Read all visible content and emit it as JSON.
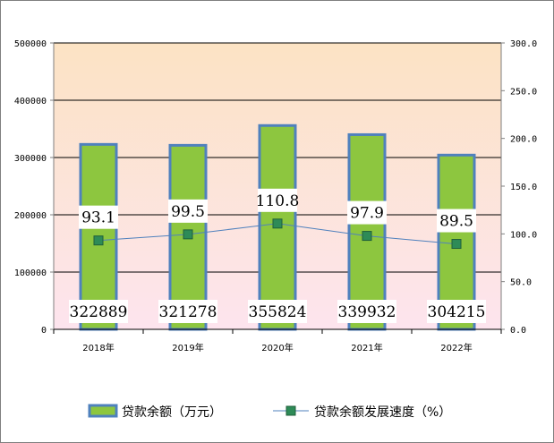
{
  "chart_data": {
    "type": "bar",
    "categories": [
      "2018年",
      "2019年",
      "2020年",
      "2021年",
      "2022年"
    ],
    "series": [
      {
        "name": "贷款余额（万元）",
        "type": "bar",
        "axis": "left",
        "values": [
          322889,
          321278,
          355824,
          339932,
          304215
        ],
        "labels": [
          "322889",
          "321278",
          "355824",
          "339932",
          "304215"
        ]
      },
      {
        "name": "贷款余额发展速度（%）",
        "type": "line",
        "axis": "right",
        "values": [
          93.1,
          99.5,
          110.8,
          97.9,
          89.5
        ],
        "labels": [
          "93.1",
          "99.5",
          "110.8",
          "97.9",
          "89.5"
        ]
      }
    ],
    "ylim": [
      0,
      500000
    ],
    "y2lim": [
      0,
      300
    ],
    "yticks": [
      "0",
      "100000",
      "200000",
      "300000",
      "400000",
      "500000"
    ],
    "y2ticks": [
      "0.0",
      "50.0",
      "100.0",
      "150.0",
      "200.0",
      "250.0",
      "300.0"
    ],
    "grid": true,
    "legend": "bottom",
    "colors": {
      "bar_fill": "#8dc63f",
      "bar_border": "#4f81bd",
      "line": "#4f81bd",
      "marker": "#2e8b57",
      "bg_top": "#fce3c4",
      "bg_bottom": "#fde4ee"
    }
  }
}
